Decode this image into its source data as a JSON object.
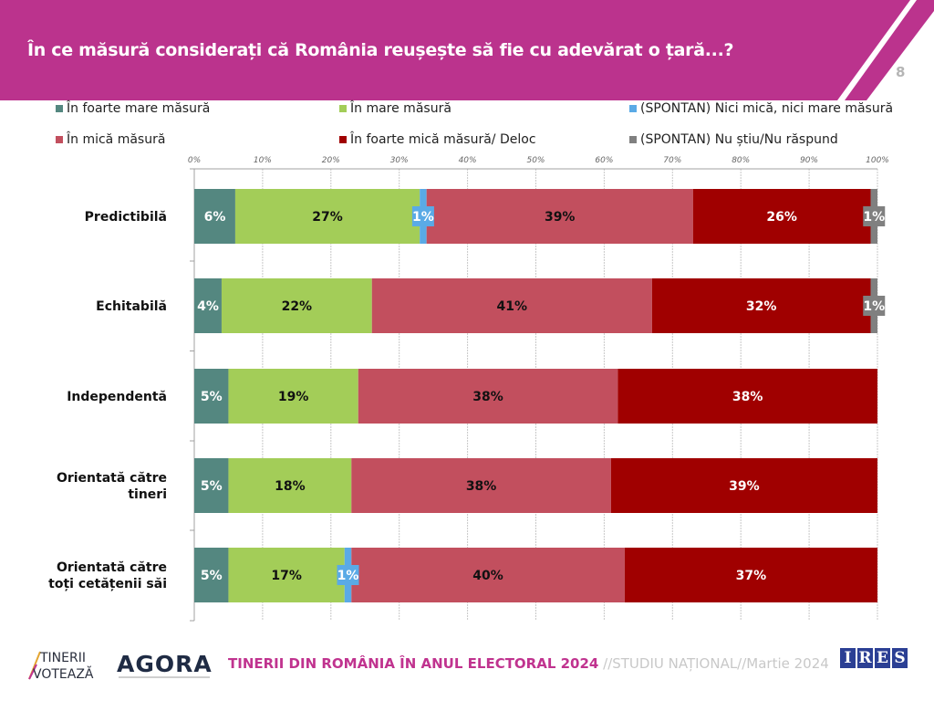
{
  "header": {
    "title": "În ce măsură considerați că România reușește să fie cu adevărat o țară...?",
    "page_number": "8",
    "brand_color": "#bb338d"
  },
  "legend": [
    {
      "label": "În foarte mare măsură",
      "color": "#548780"
    },
    {
      "label": "În mare măsură",
      "color": "#a3cd58"
    },
    {
      "label": "(SPONTAN) Nici mică, nici mare măsură",
      "color": "#5aaae6"
    },
    {
      "label": "În mică măsură",
      "color": "#c24f5e"
    },
    {
      "label": "În foarte mică măsură/ Deloc",
      "color": "#a00000"
    },
    {
      "label": "(SPONTAN) Nu știu/Nu răspund",
      "color": "#808080"
    }
  ],
  "chart_data": {
    "type": "bar",
    "orientation": "horizontal",
    "stacked": true,
    "title": "În ce măsură considerați că România reușește să fie cu adevărat o țară...?",
    "xlabel": "",
    "ylabel": "",
    "xlim": [
      0,
      100
    ],
    "x_ticks": [
      "0%",
      "10%",
      "20%",
      "30%",
      "40%",
      "50%",
      "60%",
      "70%",
      "80%",
      "90%",
      "100%"
    ],
    "grid": true,
    "legend_position": "top",
    "categories": [
      "Predictibilă",
      "Echitabilă",
      "Independentă",
      "Orientată către tineri",
      "Orientată către toți cetățenii săi"
    ],
    "category_lines": [
      [
        "Predictibilă"
      ],
      [
        "Echitabilă"
      ],
      [
        "Independentă"
      ],
      [
        "Orientată către",
        "tineri"
      ],
      [
        "Orientată către",
        "toți cetățenii săi"
      ]
    ],
    "series": [
      {
        "name": "În foarte mare măsură",
        "color": "#548780",
        "label_color": "#ffffff",
        "values": [
          6,
          4,
          5,
          5,
          5
        ]
      },
      {
        "name": "În mare măsură",
        "color": "#a3cd58",
        "label_color": "#111111",
        "values": [
          27,
          22,
          19,
          18,
          17
        ]
      },
      {
        "name": "(SPONTAN) Nici mică, nici mare măsură",
        "color": "#5aaae6",
        "label_color": "#ffffff",
        "values": [
          1,
          0,
          0,
          0,
          1
        ]
      },
      {
        "name": "În mică măsură",
        "color": "#c24f5e",
        "label_color": "#111111",
        "values": [
          39,
          41,
          38,
          38,
          40
        ]
      },
      {
        "name": "În foarte mică măsură/ Deloc",
        "color": "#a00000",
        "label_color": "#ffffff",
        "values": [
          26,
          32,
          38,
          39,
          37
        ]
      },
      {
        "name": "(SPONTAN) Nu știu/Nu răspund",
        "color": "#808080",
        "label_color": "#ffffff",
        "values": [
          1,
          1,
          0,
          0,
          0
        ]
      }
    ]
  },
  "footer": {
    "study_title": "TINERII DIN ROMÂNIA ÎN ANUL ELECTORAL 2024",
    "study_subtitle": " //STUDIU NAȚIONAL//Martie 2024",
    "logo_tinerii_line1": "TINERII",
    "logo_tinerii_line2": "VOTEAZĂ",
    "logo_agora": "AGORA",
    "logo_ires_letters": [
      "I",
      "R",
      "E",
      "S"
    ]
  }
}
